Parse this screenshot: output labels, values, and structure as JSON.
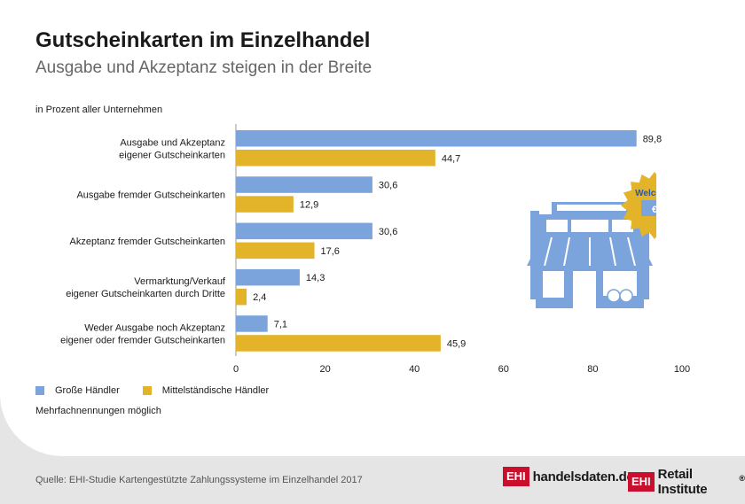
{
  "title": "Gutscheinkarten im Einzelhandel",
  "subtitle": "Ausgabe und Akzeptanz steigen in der Breite",
  "unit_note": "in Prozent aller Unternehmen",
  "legend": [
    {
      "name": "Große Händler",
      "color": "#7ba4dc"
    },
    {
      "name": "Mittelständische Händler",
      "color": "#e3b32a"
    }
  ],
  "note": "Mehrfachnennungen möglich",
  "source": "Quelle: EHI-Studie Kartengestützte Zahlungssysteme im Einzelhandel 2017",
  "logos": {
    "logo1_box": "EHI",
    "logo1_text": "handelsdaten.de",
    "logo2_box": "EHI",
    "logo2_text": "Retail Institute",
    "logo2_mark": "®"
  },
  "illustration": {
    "badge_text": "Welcome",
    "badge_symbol": "€"
  },
  "chart_data": {
    "type": "bar",
    "orientation": "horizontal",
    "categories": [
      [
        "Ausgabe und Akzeptanz",
        "eigener Gutscheinkarten"
      ],
      [
        "Ausgabe fremder Gutscheinkarten"
      ],
      [
        "Akzeptanz fremder Gutscheinkarten"
      ],
      [
        "Vermarktung/Verkauf",
        "eigener Gutscheinkarten durch Dritte"
      ],
      [
        "Weder Ausgabe noch Akzeptanz",
        "eigener oder fremder Gutscheinkarten"
      ]
    ],
    "series": [
      {
        "name": "Große Händler",
        "color": "#7ba4dc",
        "values": [
          89.8,
          30.6,
          30.6,
          14.3,
          7.1
        ],
        "labels": [
          "89,8",
          "30,6",
          "30,6",
          "14,3",
          "7,1"
        ]
      },
      {
        "name": "Mittelständische Händler",
        "color": "#e3b32a",
        "values": [
          44.7,
          12.9,
          17.6,
          2.4,
          45.9
        ],
        "labels": [
          "44,7",
          "12,9",
          "17,6",
          "2,4",
          "45,9"
        ]
      }
    ],
    "xlim": [
      0,
      100
    ],
    "xticks": [
      0,
      20,
      40,
      60,
      80,
      100
    ],
    "xtick_labels": [
      "0",
      "20",
      "40",
      "60",
      "80",
      "100"
    ],
    "grid": false,
    "legend_position": "bottom-left"
  }
}
